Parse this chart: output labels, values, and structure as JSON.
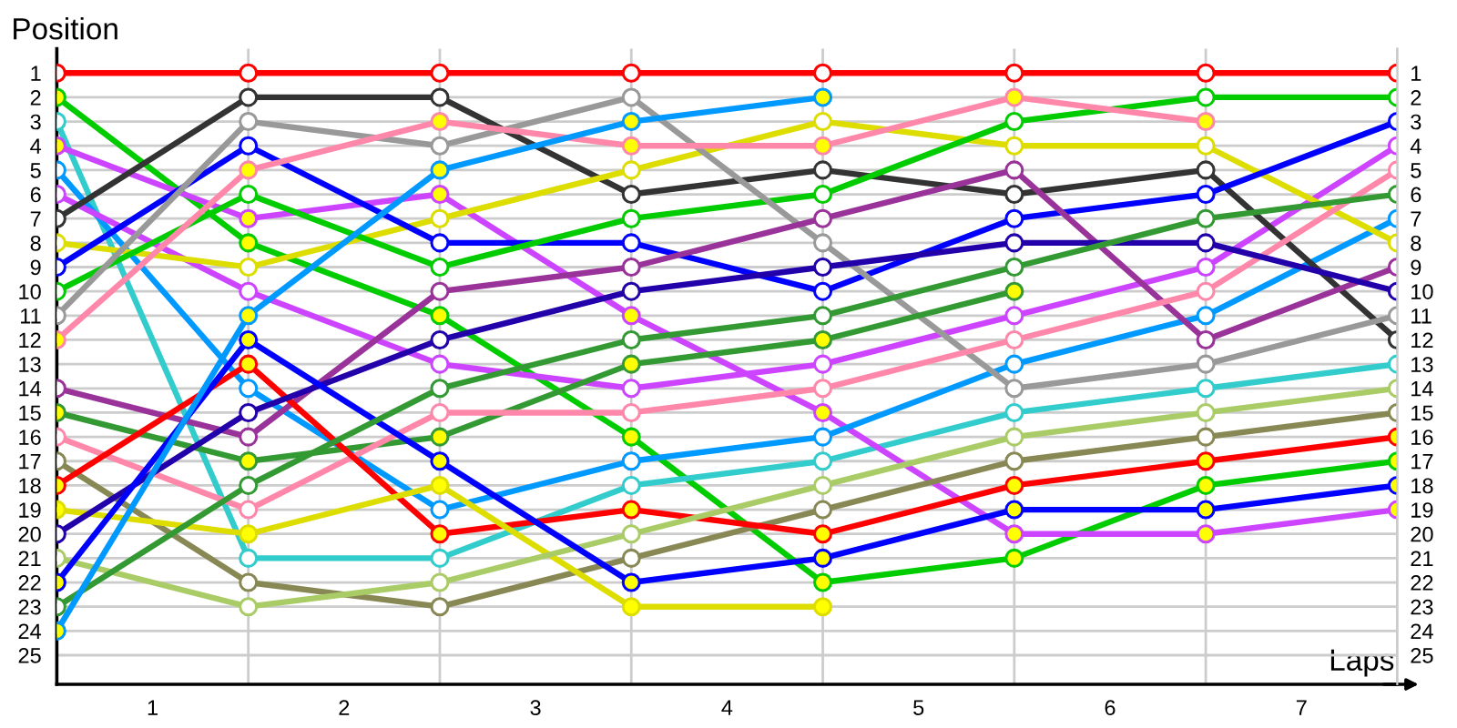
{
  "chart_data": {
    "type": "line",
    "xlabel": "Laps",
    "ylabel": "Position",
    "x": [
      0,
      1,
      2,
      3,
      4,
      5,
      6,
      7
    ],
    "series": [
      {
        "color": "#ff0000",
        "values": [
          1,
          1,
          1,
          1,
          1,
          1,
          1,
          1
        ],
        "colors": [
          "#ffffff",
          "#ffffff",
          "#ffffff",
          "#ffffff",
          "#ffffff",
          "#ffffff",
          "#ffffff",
          "#ffffff"
        ]
      },
      {
        "color": "#00cc00",
        "values": [
          2,
          8,
          11,
          16,
          22,
          21,
          18,
          17
        ],
        "colors": [
          "#ffff00",
          "#ffff00",
          "#ffff00",
          "#ffff00",
          "#ffff00",
          "#ffff00",
          "#ffff00",
          "#ffff00"
        ]
      },
      {
        "color": "#33cccc",
        "values": [
          3,
          21,
          21,
          18,
          17,
          15,
          14,
          13
        ],
        "colors": [
          "#ffffff",
          "#ffffff",
          "#ffffff",
          "#ffffff",
          "#ffffff",
          "#ffffff",
          "#ffffff",
          "#ffffff"
        ]
      },
      {
        "color": "#cc44ff",
        "values": [
          4,
          7,
          6,
          11,
          15,
          20,
          20,
          19
        ],
        "colors": [
          "#ffff00",
          "#ffff00",
          "#ffff00",
          "#ffff00",
          "#ffff00",
          "#ffff00",
          "#ffff00",
          "#ffff00"
        ]
      },
      {
        "color": "#0099ff",
        "values": [
          5,
          14,
          19,
          17,
          16,
          13,
          11,
          7
        ],
        "colors": [
          "#ffffff",
          "#ffffff",
          "#ffffff",
          "#ffffff",
          "#ffffff",
          "#ffffff",
          "#ffffff",
          "#ffffff"
        ]
      },
      {
        "color": "#cc44ff",
        "values": [
          6,
          10,
          13,
          14,
          13,
          11,
          9,
          4
        ],
        "colors": [
          "#ffffff",
          "#ffffff",
          "#ffffff",
          "#ffffff",
          "#ffffff",
          "#ffffff",
          "#ffffff",
          "#ffffff"
        ]
      },
      {
        "color": "#333333",
        "values": [
          7,
          2,
          2,
          6,
          5,
          6,
          5,
          12
        ],
        "colors": [
          "#ffffff",
          "#ffffff",
          "#ffffff",
          "#ffffff",
          "#ffffff",
          "#ffffff",
          "#ffffff",
          "#ffffff"
        ]
      },
      {
        "color": "#dddd00",
        "values": [
          8,
          9,
          7,
          5,
          3,
          4,
          4,
          8
        ],
        "colors": [
          "#ffffff",
          "#ffffff",
          "#ffffff",
          "#ffffff",
          "#ffffff",
          "#ffffff",
          "#ffffff",
          "#ffffff"
        ]
      },
      {
        "color": "#0000ff",
        "values": [
          9,
          4,
          8,
          8,
          10,
          7,
          6,
          3
        ],
        "colors": [
          "#ffffff",
          "#ffffff",
          "#ffffff",
          "#ffffff",
          "#ffffff",
          "#ffffff",
          "#ffffff",
          "#ffffff"
        ]
      },
      {
        "color": "#00cc00",
        "values": [
          10,
          6,
          9,
          7,
          6,
          3,
          2,
          2
        ],
        "colors": [
          "#ffffff",
          "#ffffff",
          "#ffffff",
          "#ffffff",
          "#ffffff",
          "#ffffff",
          "#ffffff",
          "#ffffff"
        ]
      },
      {
        "color": "#999999",
        "values": [
          11,
          3,
          4,
          2,
          8,
          14,
          13,
          11
        ],
        "colors": [
          "#ffffff",
          "#ffffff",
          "#ffffff",
          "#ffffff",
          "#ffffff",
          "#ffffff",
          "#ffffff",
          "#ffffff"
        ]
      },
      {
        "color": "#ff88aa",
        "values": [
          12,
          5,
          3,
          4,
          4,
          2,
          3,
          null
        ],
        "colors": [
          "#ffff00",
          "#ffff00",
          "#ffff00",
          "#ffff00",
          "#ffff00",
          "#ffff00",
          "#ffff00",
          null
        ]
      },
      {
        "color": "#993399",
        "values": [
          14,
          16,
          10,
          9,
          7,
          5,
          12,
          9
        ],
        "colors": [
          "#ffffff",
          "#ffffff",
          "#ffffff",
          "#ffffff",
          "#ffffff",
          "#ffffff",
          "#ffffff",
          "#ffffff"
        ]
      },
      {
        "color": "#339933",
        "values": [
          15,
          17,
          16,
          13,
          12,
          10,
          null,
          null
        ],
        "colors": [
          "#ffff00",
          "#ffff00",
          "#ffff00",
          "#ffff00",
          "#ffff00",
          "#ffff00",
          null,
          null
        ]
      },
      {
        "color": "#ff88aa",
        "values": [
          16,
          19,
          15,
          15,
          14,
          12,
          10,
          5
        ],
        "colors": [
          "#ffffff",
          "#ffffff",
          "#ffffff",
          "#ffffff",
          "#ffffff",
          "#ffffff",
          "#ffffff",
          "#ffffff"
        ]
      },
      {
        "color": "#888855",
        "values": [
          17,
          22,
          23,
          21,
          19,
          17,
          16,
          15
        ],
        "colors": [
          "#ffffff",
          "#ffffff",
          "#ffffff",
          "#ffffff",
          "#ffffff",
          "#ffffff",
          "#ffffff",
          "#ffffff"
        ]
      },
      {
        "color": "#ff0000",
        "values": [
          18,
          13,
          20,
          19,
          20,
          18,
          17,
          16
        ],
        "colors": [
          "#ffff00",
          "#ffff00",
          "#ffff00",
          "#ffff00",
          "#ffff00",
          "#ffff00",
          "#ffff00",
          "#ffff00"
        ]
      },
      {
        "color": "#dddd00",
        "values": [
          19,
          20,
          18,
          23,
          23,
          null,
          null,
          null
        ],
        "colors": [
          "#ffff00",
          "#ffff00",
          "#ffff00",
          "#ffff00",
          "#ffff00",
          null,
          null,
          null
        ]
      },
      {
        "color": "#2200aa",
        "values": [
          20,
          15,
          12,
          10,
          9,
          8,
          8,
          10
        ],
        "colors": [
          "#ffffff",
          "#ffffff",
          "#ffffff",
          "#ffffff",
          "#ffffff",
          "#ffffff",
          "#ffffff",
          "#ffffff"
        ]
      },
      {
        "color": "#aacc66",
        "values": [
          21,
          23,
          22,
          20,
          18,
          16,
          15,
          14
        ],
        "colors": [
          "#ffffff",
          "#ffffff",
          "#ffffff",
          "#ffffff",
          "#ffffff",
          "#ffffff",
          "#ffffff",
          "#ffffff"
        ]
      },
      {
        "color": "#0000ff",
        "values": [
          22,
          12,
          17,
          22,
          21,
          19,
          19,
          18
        ],
        "colors": [
          "#ffff00",
          "#ffff00",
          "#ffff00",
          "#ffff00",
          "#ffff00",
          "#ffff00",
          "#ffff00",
          "#ffff00"
        ]
      },
      {
        "color": "#339933",
        "values": [
          23,
          18,
          14,
          12,
          11,
          9,
          7,
          6
        ],
        "colors": [
          "#ffffff",
          "#ffffff",
          "#ffffff",
          "#ffffff",
          "#ffffff",
          "#ffffff",
          "#ffffff",
          "#ffffff"
        ]
      },
      {
        "color": "#0099ff",
        "values": [
          24,
          11,
          5,
          3,
          2,
          null,
          null,
          null
        ],
        "colors": [
          "#ffff00",
          "#ffff00",
          "#ffff00",
          "#ffff00",
          "#ffff00",
          null,
          null,
          null
        ]
      }
    ],
    "xlim": [
      0,
      7
    ],
    "xticks": [
      {
        "value": 0.5,
        "label": "1"
      },
      {
        "value": 1,
        "label": null
      },
      {
        "value": 1.5,
        "label": "2"
      },
      {
        "value": 2,
        "label": null
      },
      {
        "value": 2.5,
        "label": "3"
      },
      {
        "value": 3,
        "label": null
      },
      {
        "value": 3.5,
        "label": "4"
      },
      {
        "value": 4,
        "label": null
      },
      {
        "value": 4.5,
        "label": "5"
      },
      {
        "value": 5,
        "label": null
      },
      {
        "value": 5.5,
        "label": "6"
      },
      {
        "value": 6,
        "label": null
      },
      {
        "value": 6.5,
        "label": "7"
      },
      {
        "value": 7,
        "label": null
      }
    ],
    "ylim": [
      26.2,
      0
    ],
    "yticks": [
      1,
      2,
      3,
      4,
      5,
      6,
      7,
      8,
      9,
      10,
      11,
      12,
      13,
      14,
      15,
      16,
      17,
      18,
      19,
      20,
      21,
      22,
      23,
      24,
      25
    ],
    "y2lim": [
      26.2,
      0
    ],
    "y2ticks": [
      1,
      2,
      3,
      4,
      5,
      6,
      7,
      8,
      9,
      10,
      11,
      12,
      13,
      14,
      15,
      16,
      17,
      18,
      19,
      20,
      21,
      22,
      23,
      24,
      25
    ],
    "grid": true,
    "marker": "circle",
    "line_style": "solid"
  }
}
